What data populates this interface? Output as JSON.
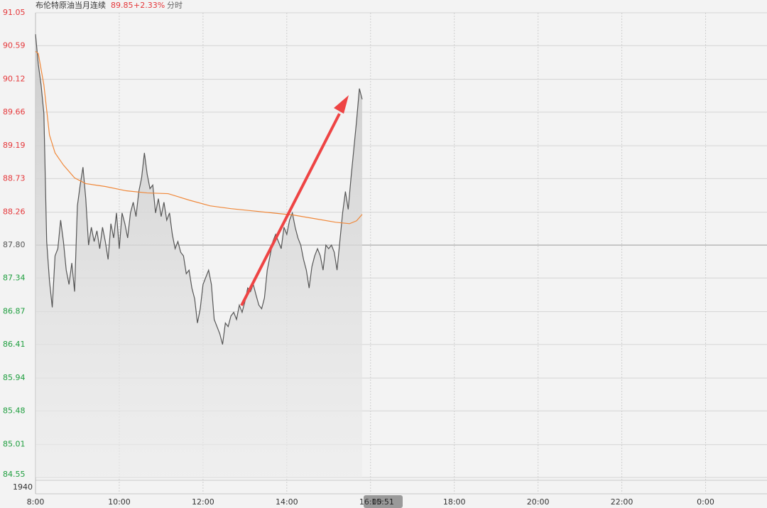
{
  "chart_data": {
    "type": "line",
    "title": "布伦特原油当月连续",
    "last_price": 89.85,
    "change_label": "+2.33%",
    "mode": "分时",
    "volume_label": "1940",
    "cursor_label": "15:51",
    "ylim": [
      84.55,
      91.05
    ],
    "yticks": [
      91.05,
      90.59,
      90.12,
      89.66,
      89.19,
      88.73,
      88.26,
      87.8,
      {
        "value": 87.8,
        "label": "87.80"
      },
      87.34,
      86.87,
      86.41,
      85.94,
      85.48,
      85.01,
      84.55
    ],
    "ref_line": 87.8,
    "up_color": "#e5383b",
    "down_color": "#1e9e3e",
    "flat_color": "#555555",
    "xlim": [
      "8:00",
      "1:28"
    ],
    "xticks": [
      "8:00",
      "10:00",
      "12:00",
      "14:00",
      "16:00",
      "18:00",
      "20:00",
      "22:00",
      "0:00"
    ],
    "grid": true,
    "series": [
      {
        "color": "#555555",
        "area": true,
        "x": [
          "8:00",
          "8:04",
          "8:08",
          "8:12",
          "8:16",
          "8:20",
          "8:24",
          "8:28",
          "8:32",
          "8:36",
          "8:40",
          "8:44",
          "8:48",
          "8:52",
          "8:56",
          "9:00",
          "9:04",
          "9:08",
          "9:12",
          "9:16",
          "9:20",
          "9:24",
          "9:28",
          "9:32",
          "9:36",
          "9:40",
          "9:44",
          "9:48",
          "9:52",
          "9:56",
          "10:00",
          "10:04",
          "10:08",
          "10:12",
          "10:16",
          "10:20",
          "10:24",
          "10:28",
          "10:32",
          "10:36",
          "10:40",
          "10:44",
          "10:48",
          "10:52",
          "10:56",
          "11:00",
          "11:04",
          "11:08",
          "11:12",
          "11:16",
          "11:20",
          "11:24",
          "11:28",
          "11:32",
          "11:36",
          "11:40",
          "11:44",
          "11:48",
          "11:52",
          "11:56",
          "12:00",
          "12:04",
          "12:08",
          "12:12",
          "12:16",
          "12:20",
          "12:24",
          "12:28",
          "12:32",
          "12:36",
          "12:40",
          "12:44",
          "12:48",
          "12:52",
          "12:56",
          "13:00",
          "13:04",
          "13:08",
          "13:12",
          "13:16",
          "13:20",
          "13:24",
          "13:28",
          "13:32",
          "13:36",
          "13:40",
          "13:44",
          "13:48",
          "13:52",
          "13:56",
          "14:00",
          "14:04",
          "14:08",
          "14:12",
          "14:16",
          "14:20",
          "14:24",
          "14:28",
          "14:32",
          "14:36",
          "14:40",
          "14:44",
          "14:48",
          "14:52",
          "14:56",
          "15:00",
          "15:04",
          "15:08",
          "15:12",
          "15:16",
          "15:20",
          "15:24",
          "15:28",
          "15:32",
          "15:36",
          "15:40",
          "15:44",
          "15:48"
        ],
        "values": [
          90.75,
          90.33,
          90.04,
          89.64,
          87.85,
          87.3,
          86.93,
          87.65,
          87.75,
          88.15,
          87.85,
          87.45,
          87.25,
          87.55,
          87.15,
          88.35,
          88.64,
          88.89,
          88.45,
          87.8,
          88.05,
          87.85,
          88.0,
          87.75,
          88.05,
          87.85,
          87.6,
          88.1,
          87.9,
          88.25,
          87.75,
          88.25,
          88.1,
          87.9,
          88.25,
          88.4,
          88.2,
          88.55,
          88.74,
          89.09,
          88.79,
          88.59,
          88.64,
          88.25,
          88.45,
          88.2,
          88.4,
          88.15,
          88.25,
          87.95,
          87.75,
          87.85,
          87.7,
          87.65,
          87.4,
          87.45,
          87.2,
          87.05,
          86.71,
          86.91,
          87.25,
          87.35,
          87.45,
          87.25,
          86.76,
          86.66,
          86.56,
          86.41,
          86.71,
          86.66,
          86.81,
          86.86,
          86.76,
          86.96,
          86.86,
          87.01,
          87.2,
          87.15,
          87.25,
          87.1,
          86.96,
          86.91,
          87.06,
          87.45,
          87.65,
          87.85,
          87.95,
          87.85,
          87.75,
          88.05,
          87.95,
          88.15,
          88.25,
          88.05,
          87.9,
          87.8,
          87.6,
          87.45,
          87.2,
          87.5,
          87.65,
          87.75,
          87.65,
          87.45,
          87.8,
          87.75,
          87.8,
          87.7,
          87.45,
          87.85,
          88.25,
          88.55,
          88.3,
          88.74,
          89.14,
          89.54,
          89.99,
          89.84
        ]
      },
      {
        "color": "#f0883a",
        "area": false,
        "x": [
          "8:00",
          "8:04",
          "8:12",
          "8:20",
          "8:28",
          "8:40",
          "8:56",
          "9:12",
          "9:40",
          "10:10",
          "10:40",
          "11:10",
          "11:40",
          "12:10",
          "12:40",
          "13:10",
          "13:40",
          "14:10",
          "14:40",
          "15:10",
          "15:30",
          "15:40",
          "15:48"
        ],
        "values": [
          90.51,
          90.48,
          90.04,
          89.34,
          89.09,
          88.92,
          88.74,
          88.66,
          88.62,
          88.56,
          88.53,
          88.52,
          88.43,
          88.35,
          88.31,
          88.28,
          88.25,
          88.22,
          88.17,
          88.12,
          88.1,
          88.14,
          88.23
        ]
      }
    ]
  }
}
